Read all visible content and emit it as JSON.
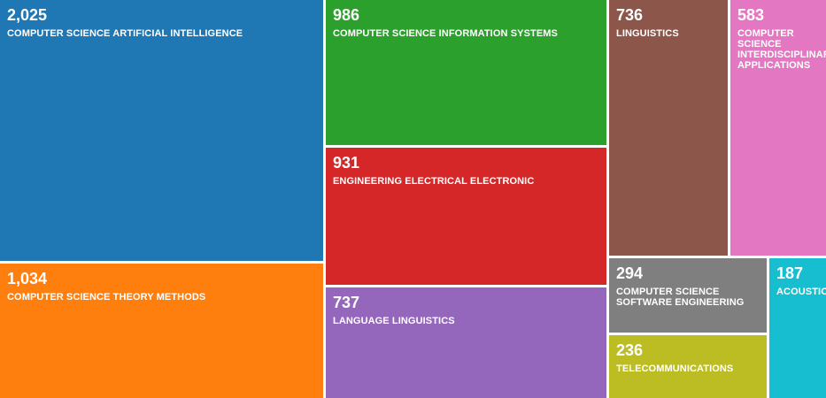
{
  "chart_data": {
    "type": "treemap",
    "items": [
      {
        "label": "COMPUTER SCIENCE ARTIFICIAL INTELLIGENCE",
        "display": "2,025",
        "value": 2025,
        "color": "#1f77b4"
      },
      {
        "label": "COMPUTER SCIENCE THEORY METHODS",
        "display": "1,034",
        "value": 1034,
        "color": "#ff7f0e"
      },
      {
        "label": "COMPUTER SCIENCE INFORMATION SYSTEMS",
        "display": "986",
        "value": 986,
        "color": "#2ca02c"
      },
      {
        "label": "ENGINEERING ELECTRICAL ELECTRONIC",
        "display": "931",
        "value": 931,
        "color": "#d62728"
      },
      {
        "label": "LANGUAGE LINGUISTICS",
        "display": "737",
        "value": 737,
        "color": "#9467bd"
      },
      {
        "label": "LINGUISTICS",
        "display": "736",
        "value": 736,
        "color": "#8c564b"
      },
      {
        "label": "COMPUTER SCIENCE INTERDISCIPLINARY APPLICATIONS",
        "display": "583",
        "value": 583,
        "color": "#e377c2"
      },
      {
        "label": "COMPUTER SCIENCE SOFTWARE ENGINEERING",
        "display": "294",
        "value": 294,
        "color": "#7f7f7f"
      },
      {
        "label": "TELECOMMUNICATIONS",
        "display": "236",
        "value": 236,
        "color": "#bcbd22"
      },
      {
        "label": "ACOUSTICS",
        "display": "187",
        "value": 187,
        "color": "#17becf"
      }
    ]
  }
}
